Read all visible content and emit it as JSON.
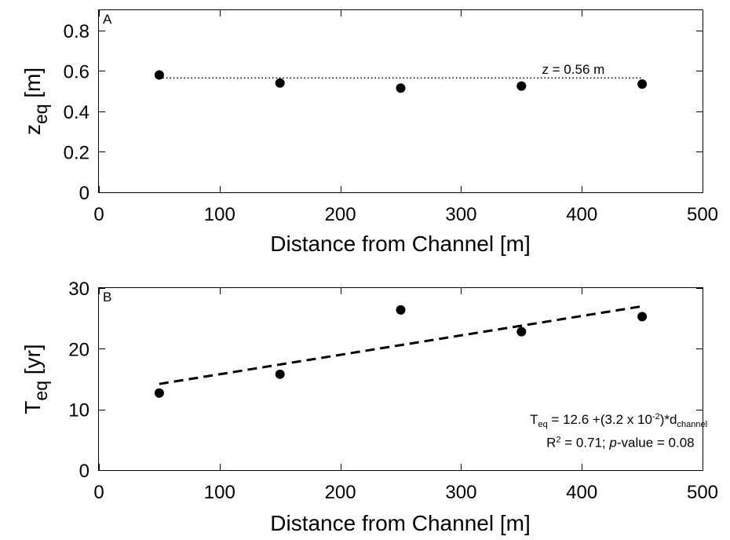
{
  "chart_data": [
    {
      "type": "scatter",
      "panel": "A",
      "xlabel": "Distance from Channel [m]",
      "ylabel_main": "z",
      "ylabel_sub": "eq",
      "ylabel_unit": "[m]",
      "xlim": [
        0,
        500
      ],
      "ylim": [
        0,
        0.9
      ],
      "xticks": [
        0,
        100,
        200,
        300,
        400,
        500
      ],
      "xtick_labels": [
        "0",
        "100",
        "200",
        "300",
        "400",
        "500"
      ],
      "yticks": [
        0,
        0.2,
        0.4,
        0.6,
        0.8
      ],
      "ytick_labels": [
        "0",
        "0.2",
        "0.4",
        "0.6",
        "0.8"
      ],
      "grid": false,
      "series": [
        {
          "x": [
            50,
            150,
            250,
            350,
            450
          ],
          "y": [
            0.58,
            0.54,
            0.515,
            0.525,
            0.535
          ]
        }
      ],
      "reference_line": {
        "style": "dotted",
        "x": [
          50,
          450
        ],
        "y": [
          0.565,
          0.565
        ]
      },
      "annotation": {
        "text": "z = 0.56 m",
        "x": 367,
        "y": 0.585
      }
    },
    {
      "type": "scatter",
      "panel": "B",
      "xlabel": "Distance from Channel [m]",
      "ylabel_main": "T",
      "ylabel_sub": "eq",
      "ylabel_unit": "[yr]",
      "xlim": [
        0,
        500
      ],
      "ylim": [
        0,
        30
      ],
      "xticks": [
        0,
        100,
        200,
        300,
        400,
        500
      ],
      "xtick_labels": [
        "0",
        "100",
        "200",
        "300",
        "400",
        "500"
      ],
      "yticks": [
        0,
        10,
        20,
        30
      ],
      "ytick_labels": [
        "0",
        "10",
        "20",
        "30"
      ],
      "grid": false,
      "series": [
        {
          "x": [
            50,
            150,
            250,
            350,
            450
          ],
          "y": [
            12.7,
            15.8,
            26.4,
            22.8,
            25.3
          ]
        }
      ],
      "fit_line": {
        "style": "dashed",
        "x": [
          50,
          450
        ],
        "y": [
          14.2,
          27.0
        ]
      },
      "annotation": {
        "line1": {
          "T": "T",
          "eq": "eq",
          "mid": " = 12.6 +(3.2 x 10",
          "exp": "-2",
          "tail": ")*d",
          "sub": "channel"
        },
        "line2": {
          "R": "R",
          "sq": "2",
          "mid": " = 0.71; ",
          "p": "p",
          "tail": "-value = 0.08"
        },
        "x": 357,
        "y1": 7.6,
        "y2": 3.8
      }
    }
  ]
}
